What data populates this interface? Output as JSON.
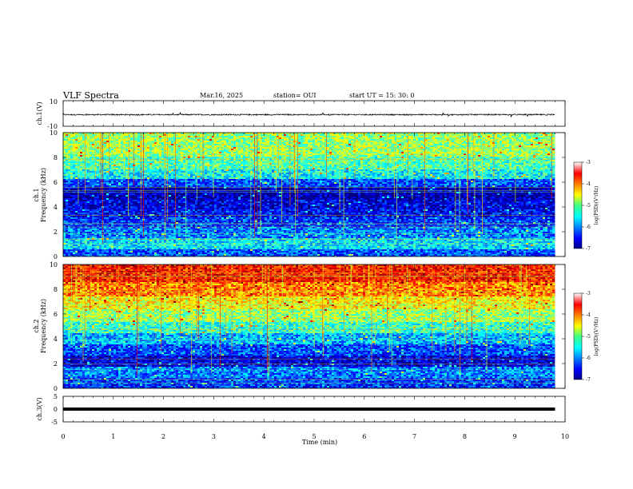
{
  "header": {
    "title": "VLF Spectra",
    "date": "Mar.16, 2025",
    "station": "station= OUI",
    "start_time": "start  UT =   15: 30: 0"
  },
  "chart_data": [
    {
      "type": "line",
      "name": "ch1-waveform",
      "ylabel": "ch.1(V)",
      "xlim": [
        0,
        10
      ],
      "ylim": [
        -10,
        10
      ],
      "yticks": [
        "10",
        "-10"
      ],
      "baseline": 0,
      "amplitude": 0.6,
      "color": "#000000"
    },
    {
      "type": "heatmap",
      "name": "ch1-spectrogram",
      "ylabel_line1": "ch.1",
      "ylabel_line2": "Frequency (kHz)",
      "xlim": [
        0,
        9.8
      ],
      "ylim": [
        0,
        10
      ],
      "yticks": [
        "0",
        "2",
        "4",
        "6",
        "8",
        "10"
      ],
      "colorbar": {
        "label": "log(PSD)(V²/Hz)",
        "range": [
          -7,
          -3
        ],
        "ticks": [
          "-3",
          "-4",
          "-5",
          "-6",
          "-7"
        ]
      },
      "bands": [
        {
          "from": 0.0,
          "to": 0.6,
          "value": -6.2
        },
        {
          "from": 0.6,
          "to": 1.5,
          "value": -5.6
        },
        {
          "from": 1.5,
          "to": 2.4,
          "value": -6.0
        },
        {
          "from": 2.4,
          "to": 3.2,
          "value": -6.3
        },
        {
          "from": 3.2,
          "to": 3.8,
          "value": -6.5
        },
        {
          "from": 3.8,
          "to": 4.6,
          "value": -6.6
        },
        {
          "from": 4.6,
          "to": 5.6,
          "value": -6.8
        },
        {
          "from": 5.6,
          "to": 6.3,
          "value": -6.2
        },
        {
          "from": 6.3,
          "to": 7.0,
          "value": -5.5
        },
        {
          "from": 7.0,
          "to": 8.0,
          "value": -5.2
        },
        {
          "from": 8.0,
          "to": 10.0,
          "value": -4.9
        }
      ]
    },
    {
      "type": "heatmap",
      "name": "ch2-spectrogram",
      "ylabel_line1": "ch.2",
      "ylabel_line2": "Frequency (kHz)",
      "xlim": [
        0,
        9.8
      ],
      "ylim": [
        0,
        10
      ],
      "yticks": [
        "0",
        "2",
        "4",
        "6",
        "8",
        "10"
      ],
      "colorbar": {
        "label": "log(PSD)(V²/Hz)",
        "range": [
          -7,
          -3
        ],
        "ticks": [
          "-3",
          "-4",
          "-5",
          "-6",
          "-7"
        ]
      },
      "bands": [
        {
          "from": 0.0,
          "to": 0.8,
          "value": -6.3
        },
        {
          "from": 0.8,
          "to": 1.8,
          "value": -6.0
        },
        {
          "from": 1.8,
          "to": 2.6,
          "value": -6.6
        },
        {
          "from": 2.6,
          "to": 3.6,
          "value": -6.2
        },
        {
          "from": 3.6,
          "to": 4.4,
          "value": -5.8
        },
        {
          "from": 4.4,
          "to": 5.4,
          "value": -5.3
        },
        {
          "from": 5.4,
          "to": 6.4,
          "value": -4.9
        },
        {
          "from": 6.4,
          "to": 7.4,
          "value": -4.5
        },
        {
          "from": 7.4,
          "to": 8.6,
          "value": -4.0
        },
        {
          "from": 8.6,
          "to": 10.0,
          "value": -3.6
        }
      ]
    },
    {
      "type": "line",
      "name": "ch3-waveform",
      "ylabel": "ch.3(V)",
      "xlim": [
        0,
        10
      ],
      "ylim": [
        -5,
        5
      ],
      "yticks": [
        "5",
        "0",
        "-5"
      ],
      "baseline": 0,
      "color": "#000000"
    }
  ],
  "x_axis": {
    "label": "Time (min)",
    "range": [
      0,
      10
    ],
    "ticks": [
      "0",
      "1",
      "2",
      "3",
      "4",
      "5",
      "6",
      "7",
      "8",
      "9",
      "10"
    ]
  }
}
